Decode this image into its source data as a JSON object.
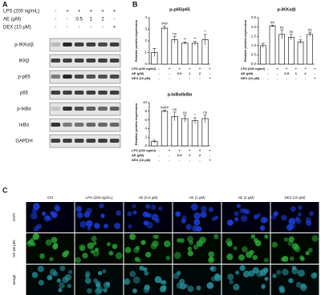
{
  "panel_a": {
    "letter": "A",
    "treatments": [
      {
        "label": "LPS (200 ng/mL)",
        "values": [
          "-",
          "+",
          "+",
          "+",
          "+",
          "+"
        ]
      },
      {
        "label": "AE (μM)",
        "values": [
          "-",
          "-",
          "0.5",
          "1",
          "2",
          "-"
        ]
      },
      {
        "label": "DEX (10 μM)",
        "values": [
          "-",
          "-",
          "-",
          "-",
          "-",
          "+"
        ]
      }
    ],
    "blots": [
      "p-IKKα/β",
      "IKKβ",
      "p-p65",
      "p65",
      "p-IκBα",
      "IκBα",
      "GAPDH"
    ]
  },
  "panel_b": {
    "letter": "B"
  },
  "chart_data": [
    {
      "type": "bar",
      "title": "p-p65/p65",
      "y_label": "Relative protein expression",
      "categories": [
        "Ctrl",
        "LPS",
        "AE 0.5",
        "AE 1",
        "AE 2",
        "DEX"
      ],
      "values": [
        1.0,
        3.1,
        2.1,
        1.8,
        1.8,
        2.1
      ],
      "errors": [
        0.35,
        0.15,
        0.3,
        0.1,
        0.15,
        0.45
      ],
      "annotations": [
        null,
        "###",
        "ns",
        "**",
        "**",
        "*"
      ],
      "ylim": [
        0,
        4
      ],
      "yticks": [
        0,
        1,
        2,
        3,
        4
      ],
      "color": "#ffffff",
      "treatments": [
        {
          "label": "LPS (200 ng/ml)",
          "values": [
            "-",
            "+",
            "+",
            "+",
            "+",
            "+"
          ]
        },
        {
          "label": "AE (μM)",
          "values": [
            "-",
            "-",
            "0.5",
            "1",
            "2",
            "-"
          ]
        },
        {
          "label": "DEX (10 μM)",
          "values": [
            "-",
            "-",
            "-",
            "-",
            "-",
            "+"
          ]
        }
      ]
    },
    {
      "type": "bar",
      "title": "p-IKKα/β",
      "y_label": "Relative protein expression",
      "categories": [
        "Ctrl",
        "LPS",
        "AE 0.5",
        "AE 1",
        "AE 2",
        "DEX"
      ],
      "values": [
        1.0,
        2.05,
        1.6,
        1.45,
        1.2,
        1.6
      ],
      "errors": [
        0.12,
        0.05,
        0.25,
        0.15,
        0.1,
        0.12
      ],
      "annotations": [
        null,
        "##",
        "ns",
        "ns",
        "*",
        "ns"
      ],
      "ylim": [
        0,
        2.5
      ],
      "yticks": [
        {
          "value": 0,
          "label": "0.0"
        },
        0.5,
        {
          "value": 1,
          "label": "1.0"
        },
        1.5,
        {
          "value": 2,
          "label": "2.0"
        },
        2.5
      ],
      "color": "#ffffff",
      "treatments": [
        {
          "label": "LPS (200 ng/ml)",
          "values": [
            "-",
            "+",
            "+",
            "+",
            "+",
            "+"
          ]
        },
        {
          "label": "AE (μM)",
          "values": [
            "-",
            "-",
            "0.5",
            "1",
            "2",
            "-"
          ]
        },
        {
          "label": "DEX (10 μM)",
          "values": [
            "-",
            "-",
            "-",
            "-",
            "-",
            "+"
          ]
        }
      ]
    },
    {
      "type": "bar",
      "title": "p-IκBα/IκBα",
      "y_label": "Relative protein expression",
      "categories": [
        "Ctrl",
        "LPS",
        "AE 0.5",
        "AE 1",
        "AE 2",
        "DEX"
      ],
      "values": [
        1.0,
        8.0,
        6.8,
        6.3,
        5.8,
        6.3
      ],
      "errors": [
        0.3,
        0.3,
        1.0,
        0.8,
        0.7,
        0.9
      ],
      "annotations": [
        null,
        "####",
        "ns",
        "ns",
        "*",
        "ns"
      ],
      "ylim": [
        0,
        10
      ],
      "yticks": [
        0,
        2,
        4,
        6,
        8,
        10
      ],
      "color": "#ffffff",
      "treatments": [
        {
          "label": "LPS (200 ng/ml)",
          "values": [
            "-",
            "+",
            "+",
            "+",
            "+",
            "+"
          ]
        },
        {
          "label": "AE (μM)",
          "values": [
            "-",
            "-",
            "0.5",
            "1",
            "2",
            "-"
          ]
        },
        {
          "label": "DEX (10 μM)",
          "values": [
            "-",
            "-",
            "-",
            "-",
            "-",
            "+"
          ]
        }
      ]
    }
  ],
  "panel_c": {
    "letter": "C",
    "columns": [
      "Ctrl",
      "LPS (200 ng/mL)",
      "AE (0.5 μM)",
      "AE (1 μM)",
      "AE (2 μM)",
      "DEX (10 μM)"
    ],
    "rows": [
      "DAPI",
      "NF-κB p65",
      "merge"
    ]
  }
}
